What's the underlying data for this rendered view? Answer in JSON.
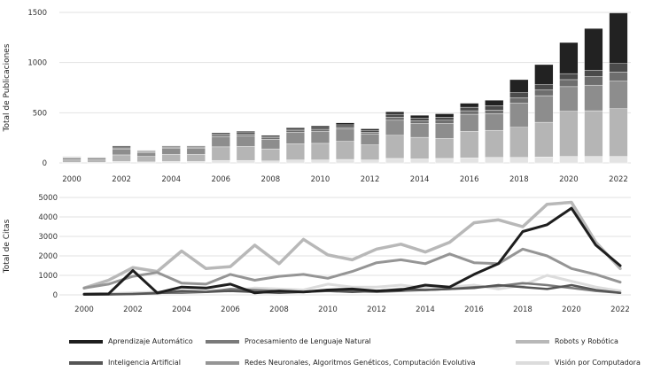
{
  "charts": [
    {
      "id": "publications",
      "chart_data": {
        "type": "bar",
        "stacked": true,
        "ylabel": "Total de Publicaciones",
        "xlabel": "",
        "ylim": [
          0,
          1500
        ],
        "yticks": [
          0,
          500,
          1000,
          1500
        ],
        "xtick_labels": [
          "2000",
          "2002",
          "2004",
          "2006",
          "2008",
          "2010",
          "2012",
          "2014",
          "2016",
          "2018",
          "2020",
          "2022"
        ],
        "categories": [
          "2000",
          "2001",
          "2002",
          "2003",
          "2004",
          "2005",
          "2006",
          "2007",
          "2008",
          "2009",
          "2010",
          "2011",
          "2012",
          "2013",
          "2014",
          "2015",
          "2016",
          "2017",
          "2018",
          "2019",
          "2020",
          "2021",
          "2022"
        ],
        "series": [
          {
            "name": "Visión por Computadora",
            "color": "#e3e3e3",
            "values": [
              5,
              5,
              15,
              10,
              15,
              15,
              25,
              25,
              20,
              30,
              30,
              35,
              30,
              45,
              40,
              45,
              50,
              55,
              55,
              60,
              65,
              65,
              65
            ]
          },
          {
            "name": "Robots y Robótica",
            "color": "#b5b5b5",
            "values": [
              25,
              25,
              65,
              55,
              70,
              70,
              135,
              140,
              120,
              160,
              165,
              180,
              150,
              230,
              215,
              200,
              265,
              270,
              300,
              345,
              450,
              455,
              475
            ]
          },
          {
            "name": "Redes Neuronales, Algoritmos Genéticos, Computación Evolutiva",
            "color": "#8d8d8d",
            "values": [
              20,
              20,
              60,
              40,
              60,
              60,
              100,
              105,
              95,
              115,
              120,
              125,
              110,
              150,
              140,
              150,
              170,
              165,
              240,
              265,
              245,
              255,
              275
            ]
          },
          {
            "name": "Procesamiento de Lenguaje Natural",
            "color": "#6e6e6e",
            "values": [
              5,
              5,
              10,
              8,
              10,
              10,
              15,
              18,
              15,
              15,
              15,
              20,
              15,
              30,
              25,
              30,
              35,
              35,
              55,
              60,
              70,
              85,
              90
            ]
          },
          {
            "name": "Inteligencia Artificial",
            "color": "#4b4b4b",
            "values": [
              5,
              3,
              10,
              6,
              8,
              8,
              15,
              15,
              12,
              15,
              20,
              20,
              20,
              30,
              25,
              30,
              35,
              45,
              50,
              50,
              60,
              65,
              85
            ]
          },
          {
            "name": "Aprendizaje Automático",
            "color": "#222222",
            "values": [
              3,
              2,
              10,
              5,
              7,
              7,
              10,
              12,
              12,
              15,
              18,
              20,
              15,
              25,
              30,
              35,
              40,
              55,
              130,
              200,
              310,
              415,
              505
            ]
          }
        ]
      }
    },
    {
      "id": "citations",
      "chart_data": {
        "type": "line",
        "ylabel": "Total de Citas",
        "xlabel": "",
        "ylim": [
          0,
          5000
        ],
        "yticks": [
          0,
          1000,
          2000,
          3000,
          4000,
          5000
        ],
        "xtick_labels": [
          "2000",
          "2002",
          "2004",
          "2006",
          "2008",
          "2010",
          "2012",
          "2014",
          "2016",
          "2018",
          "2020",
          "2022"
        ],
        "x": [
          2000,
          2001,
          2002,
          2003,
          2004,
          2005,
          2006,
          2007,
          2008,
          2009,
          2010,
          2011,
          2012,
          2013,
          2014,
          2015,
          2016,
          2017,
          2018,
          2019,
          2020,
          2021,
          2022
        ],
        "series": [
          {
            "name": "Visión por Computadora",
            "color": "#dcdcdc",
            "width": 3,
            "values": [
              50,
              60,
              100,
              150,
              200,
              250,
              200,
              350,
              300,
              250,
              550,
              400,
              400,
              500,
              350,
              400,
              500,
              300,
              500,
              1000,
              700,
              400,
              200
            ]
          },
          {
            "name": "Robots y Robótica",
            "color": "#b8b8b8",
            "width": 3.5,
            "values": [
              350,
              750,
              1400,
              1200,
              2250,
              1350,
              1450,
              2550,
              1600,
              2850,
              2050,
              1800,
              2350,
              2600,
              2200,
              2700,
              3700,
              3850,
              3500,
              4650,
              4750,
              2700,
              1350
            ]
          },
          {
            "name": "Redes Neuronales, Algoritmos Genéticos, Computación Evolutiva",
            "color": "#959595",
            "width": 3,
            "values": [
              350,
              550,
              950,
              1150,
              600,
              550,
              1050,
              750,
              950,
              1050,
              850,
              1200,
              1650,
              1800,
              1600,
              2100,
              1650,
              1600,
              2350,
              2000,
              1350,
              1050,
              650
            ]
          },
          {
            "name": "Procesamiento de Lenguaje Natural",
            "color": "#7a7a7a",
            "width": 2.5,
            "values": [
              20,
              30,
              50,
              100,
              100,
              150,
              300,
              250,
              200,
              150,
              250,
              200,
              150,
              200,
              250,
              300,
              400,
              450,
              600,
              500,
              350,
              200,
              100
            ]
          },
          {
            "name": "Inteligencia Artificial",
            "color": "#555555",
            "width": 2.5,
            "values": [
              10,
              20,
              40,
              80,
              200,
              150,
              200,
              150,
              100,
              150,
              200,
              150,
              200,
              300,
              250,
              300,
              350,
              500,
              400,
              300,
              500,
              250,
              100
            ]
          },
          {
            "name": "Aprendizaje Automático",
            "color": "#1e1e1e",
            "width": 3,
            "values": [
              30,
              50,
              1250,
              100,
              400,
              350,
              550,
              100,
              200,
              150,
              250,
              300,
              200,
              250,
              500,
              400,
              1050,
              1600,
              3250,
              3600,
              4450,
              2550,
              1500
            ]
          }
        ]
      }
    }
  ],
  "legend": {
    "items": [
      {
        "label": "Aprendizaje Automático",
        "color": "#1e1e1e"
      },
      {
        "label": "Procesamiento de Lenguaje Natural",
        "color": "#7a7a7a"
      },
      {
        "label": "Robots y Robótica",
        "color": "#b8b8b8"
      },
      {
        "label": "Inteligencia Artificial",
        "color": "#555555"
      },
      {
        "label": "Redes Neuronales, Algoritmos Genéticos, Computación Evolutiva",
        "color": "#959595"
      },
      {
        "label": "Visión por Computadora",
        "color": "#dcdcdc"
      }
    ]
  }
}
